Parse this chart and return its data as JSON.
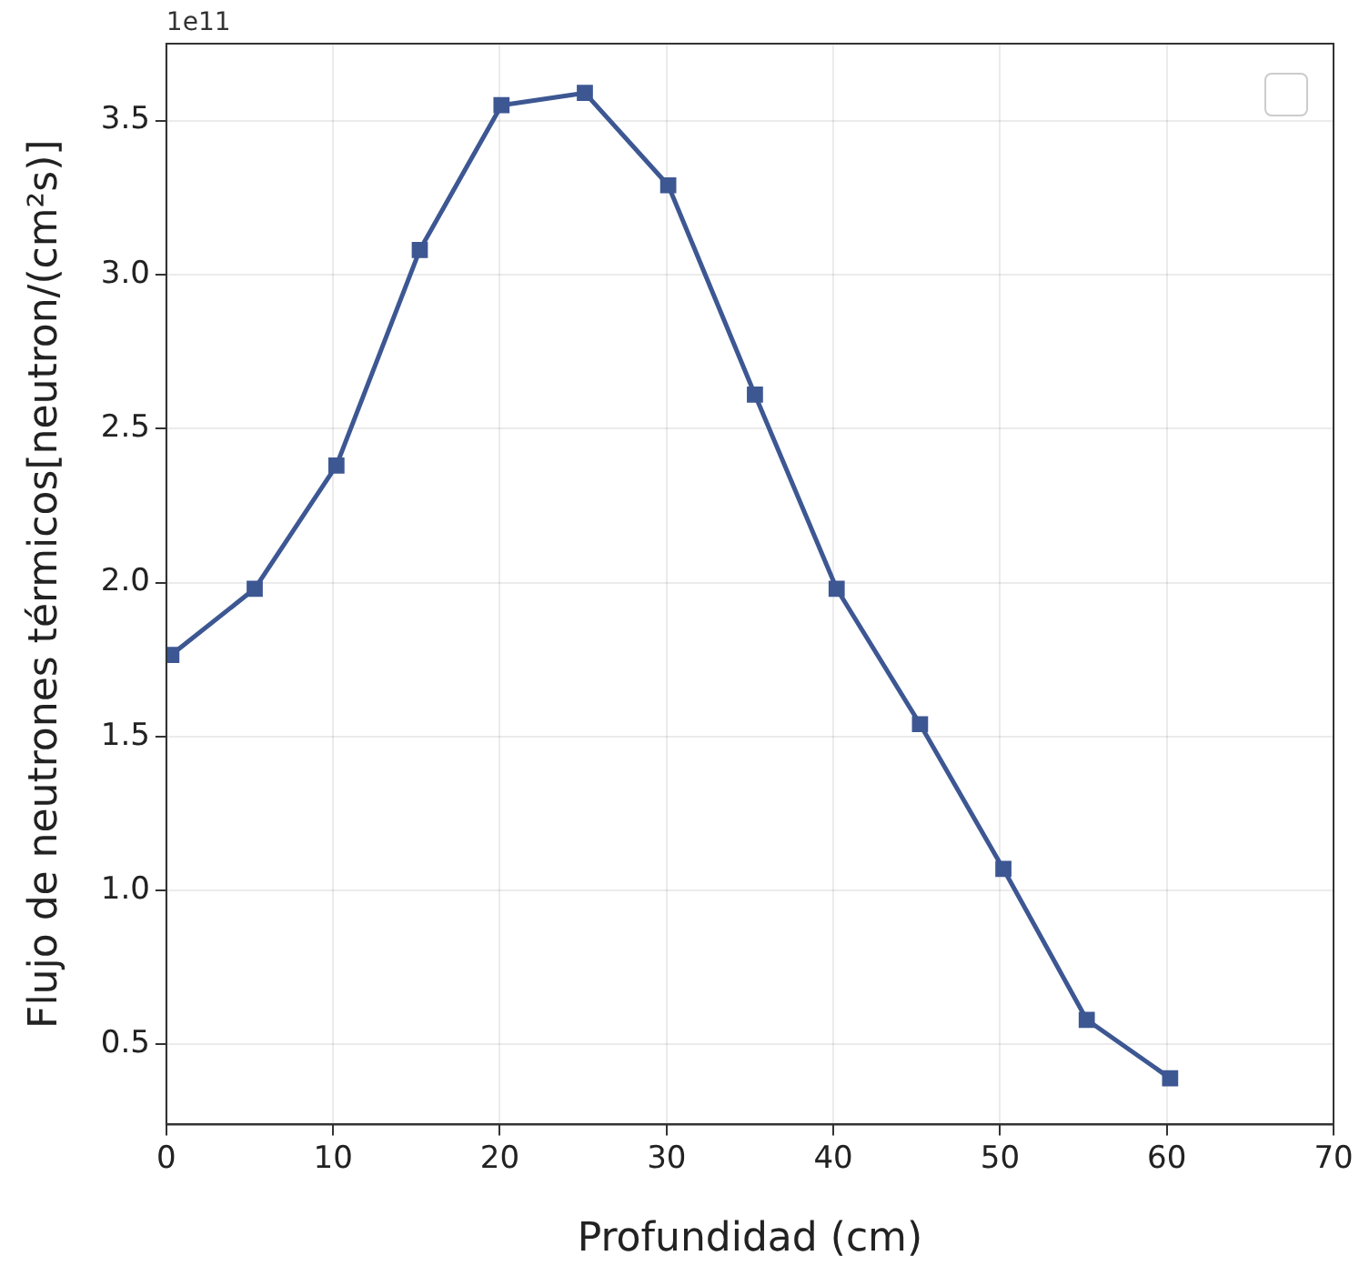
{
  "chart_data": {
    "type": "line",
    "xlabel": "Profundidad (cm)",
    "ylabel": "Flujo de neutrones térmicos[neutron/(cm²s)]",
    "annotations": [
      "1e11"
    ],
    "x": [
      0.3,
      5.3,
      10.2,
      15.2,
      20.1,
      25.1,
      30.1,
      35.3,
      40.2,
      45.2,
      50.2,
      55.2,
      60.2
    ],
    "series": [
      {
        "color": "#3d5793",
        "values": [
          1.765,
          1.98,
          2.38,
          3.08,
          3.55,
          3.59,
          3.29,
          2.61,
          1.98,
          1.54,
          1.07,
          0.58,
          0.39
        ]
      }
    ],
    "xlim": [
      0,
      70
    ],
    "xticks": [
      0,
      10,
      20,
      30,
      40,
      50,
      60,
      70
    ],
    "ylim": [
      0.24,
      3.75
    ],
    "yticks": [
      0.5,
      {
        "value": 1,
        "label": "1.0"
      },
      1.5,
      {
        "value": 2,
        "label": "2.0"
      },
      2.5,
      {
        "value": 3,
        "label": "3.0"
      },
      3.5
    ],
    "grid": true,
    "marker": "square",
    "line_style": "solid"
  }
}
